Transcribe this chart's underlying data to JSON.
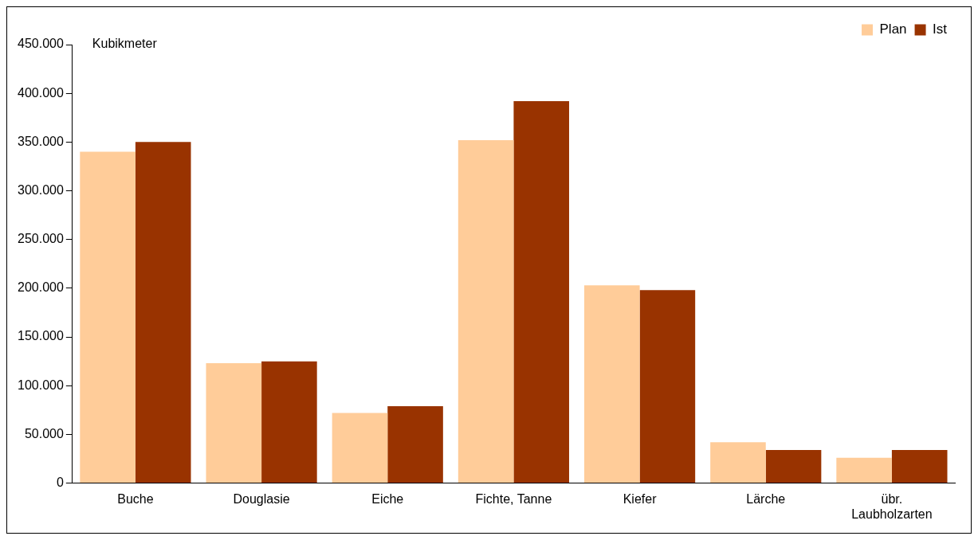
{
  "chart_data": {
    "type": "bar",
    "ylabel": "Kubikmeter",
    "categories": [
      "Buche",
      "Douglasie",
      "Eiche",
      "Fichte, Tanne",
      "Kiefer",
      "Lärche",
      "übr. Laubholzarten"
    ],
    "series": [
      {
        "name": "Plan",
        "color": "#ffcc99",
        "values": [
          340000,
          123000,
          72000,
          352000,
          203000,
          42000,
          26000
        ]
      },
      {
        "name": "Ist",
        "color": "#993300",
        "values": [
          350000,
          125000,
          79000,
          392000,
          198000,
          34000,
          34000
        ]
      }
    ],
    "ylim": [
      0,
      450000
    ],
    "yticks": [
      {
        "value": 0,
        "label": "0"
      },
      {
        "value": 50000,
        "label": "50.000"
      },
      {
        "value": 100000,
        "label": "100.000"
      },
      {
        "value": 150000,
        "label": "150.000"
      },
      {
        "value": 200000,
        "label": "200.000"
      },
      {
        "value": 250000,
        "label": "250.000"
      },
      {
        "value": 300000,
        "label": "300.000"
      },
      {
        "value": 350000,
        "label": "350.000"
      },
      {
        "value": 400000,
        "label": "400.000"
      },
      {
        "value": 450000,
        "label": "450.000"
      }
    ],
    "grid": false,
    "legend": "top right"
  }
}
